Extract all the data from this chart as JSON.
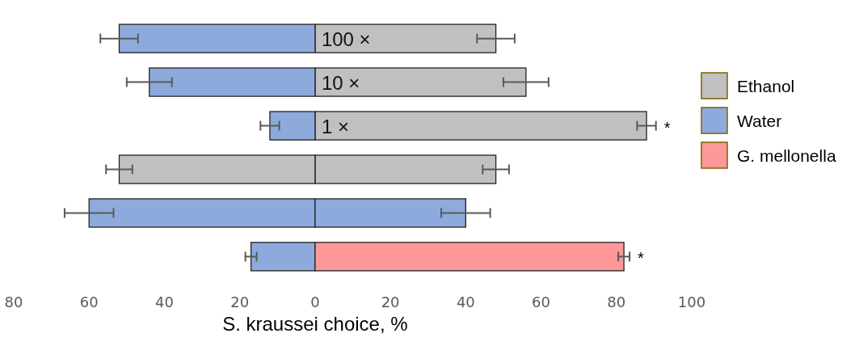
{
  "chart_data": {
    "type": "bar",
    "orientation": "horizontal",
    "stacked": true,
    "xlabel": "S. kraussei choice, %",
    "categories": [
      "100 ×",
      "10 ×",
      "1 ×",
      null,
      null,
      null
    ],
    "xlim": [
      -80,
      100
    ],
    "xticks": [
      {
        "value": -80,
        "label": "80"
      },
      {
        "value": -60,
        "label": "60"
      },
      {
        "value": -40,
        "label": "40"
      },
      {
        "value": -20,
        "label": "20"
      },
      0,
      20,
      40,
      60,
      80,
      100
    ],
    "series": [
      {
        "name": "Ethanol",
        "color": "#c0c0c0",
        "values": [
          48,
          56,
          88,
          48,
          null,
          null
        ],
        "errors": [
          5,
          6,
          2.5,
          3.5,
          null,
          null
        ],
        "value_labels": [
          null,
          null,
          "*",
          null,
          null,
          null
        ]
      },
      {
        "name": "Water",
        "color": "#8eaadc",
        "values": [
          -52,
          -44,
          -12,
          null,
          -60,
          -17
        ],
        "errors": [
          5,
          6,
          2.5,
          null,
          6.5,
          1.5
        ]
      },
      {
        "name": "G. mellonella",
        "color": "#ff9999",
        "values": [
          null,
          null,
          null,
          null,
          null,
          82
        ],
        "errors": [
          null,
          null,
          null,
          null,
          null,
          1.5
        ],
        "value_labels": [
          null,
          null,
          null,
          null,
          null,
          "*"
        ]
      },
      {
        "color": "#c0c0c0",
        "values": [
          null,
          null,
          null,
          -52,
          null,
          null
        ],
        "errors": [
          null,
          null,
          null,
          3.5,
          null,
          null
        ]
      },
      {
        "color": "#8eaadc",
        "values": [
          null,
          null,
          null,
          null,
          40,
          null
        ],
        "errors": [
          null,
          null,
          null,
          null,
          6.5,
          null
        ]
      }
    ],
    "grid": false,
    "legend": "right"
  }
}
